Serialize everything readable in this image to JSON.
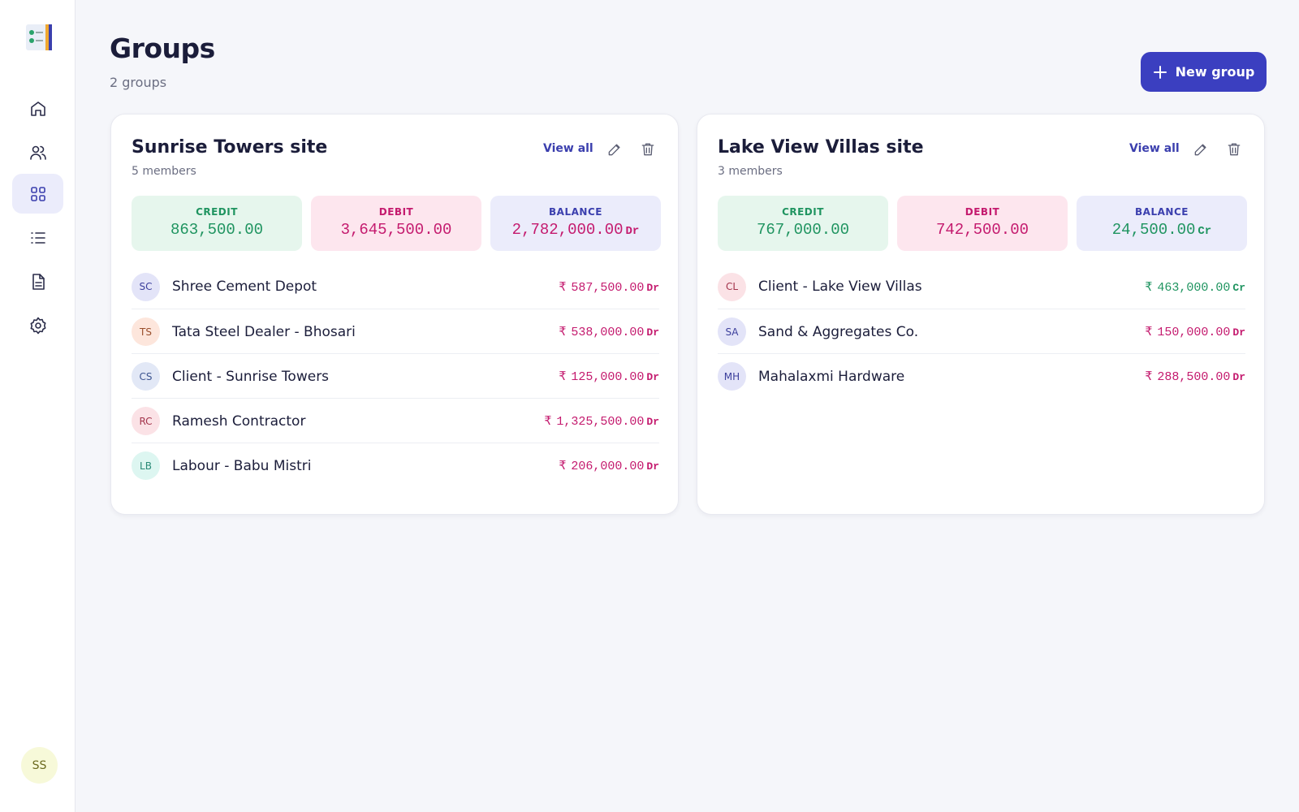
{
  "header": {
    "title": "Groups",
    "subtitle": "2 groups",
    "button": "New group"
  },
  "user": {
    "initials": "SS"
  },
  "groups": [
    {
      "name": "Sunrise Towers site",
      "members_text": "5 members",
      "view_all": "View all",
      "summary": [
        {
          "label": "CREDIT",
          "value": "863,500.00",
          "kind": "credit"
        },
        {
          "label": "DEBIT",
          "value": "3,645,500.00",
          "kind": "debit"
        },
        {
          "label": "BALANCE",
          "value": "2,782,000.00",
          "side": "Dr",
          "kind": "balance"
        }
      ],
      "members": [
        {
          "initials": "SC",
          "name": "Shree Cement Depot",
          "currency": "₹",
          "amount": "587,500.00",
          "side": "Dr",
          "avatar_bg": "#e3e4f8",
          "avatar_fg": "#3c3f9c"
        },
        {
          "initials": "TS",
          "name": "Tata Steel Dealer - Bhosari",
          "currency": "₹",
          "amount": "538,000.00",
          "side": "Dr",
          "avatar_bg": "#fde6dc",
          "avatar_fg": "#9a4f2c"
        },
        {
          "initials": "CS",
          "name": "Client - Sunrise Towers",
          "currency": "₹",
          "amount": "125,000.00",
          "side": "Dr",
          "avatar_bg": "#e2e8f6",
          "avatar_fg": "#3d5590"
        },
        {
          "initials": "RC",
          "name": "Ramesh Contractor",
          "currency": "₹",
          "amount": "1,325,500.00",
          "side": "Dr",
          "avatar_bg": "#fbe2e6",
          "avatar_fg": "#a3344c"
        },
        {
          "initials": "LB",
          "name": "Labour - Babu Mistri",
          "currency": "₹",
          "amount": "206,000.00",
          "side": "Dr",
          "avatar_bg": "#ddf6f1",
          "avatar_fg": "#2a8a77"
        }
      ]
    },
    {
      "name": "Lake View Villas site",
      "members_text": "3 members",
      "view_all": "View all",
      "summary": [
        {
          "label": "CREDIT",
          "value": "767,000.00",
          "kind": "credit"
        },
        {
          "label": "DEBIT",
          "value": "742,500.00",
          "kind": "debit"
        },
        {
          "label": "BALANCE",
          "value": "24,500.00",
          "side": "Cr",
          "kind": "balance"
        }
      ],
      "members": [
        {
          "initials": "CL",
          "name": "Client - Lake View Villas",
          "currency": "₹",
          "amount": "463,000.00",
          "side": "Cr",
          "avatar_bg": "#fbe2e6",
          "avatar_fg": "#a3344c"
        },
        {
          "initials": "SA",
          "name": "Sand & Aggregates Co.",
          "currency": "₹",
          "amount": "150,000.00",
          "side": "Dr",
          "avatar_bg": "#e3e4f8",
          "avatar_fg": "#3c3f9c"
        },
        {
          "initials": "MH",
          "name": "Mahalaxmi Hardware",
          "currency": "₹",
          "amount": "288,500.00",
          "side": "Dr",
          "avatar_bg": "#e3e4f8",
          "avatar_fg": "#3c3f9c"
        }
      ]
    }
  ]
}
